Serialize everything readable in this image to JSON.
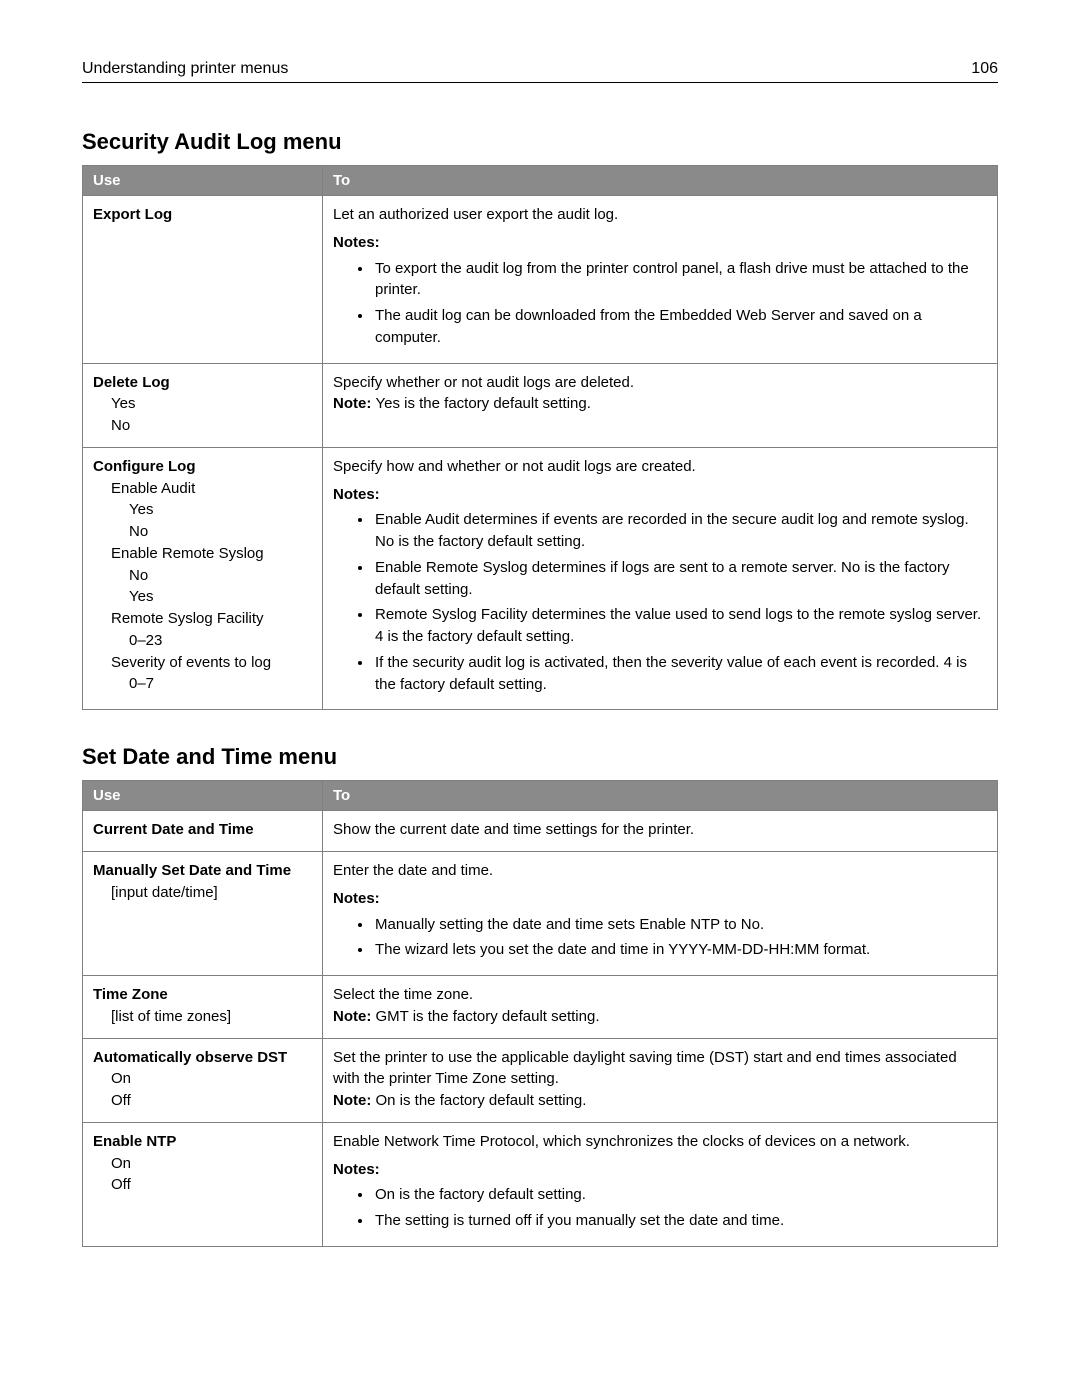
{
  "header": {
    "left": "Understanding printer menus",
    "page_number": "106"
  },
  "section1_title": "Security Audit Log menu",
  "section2_title": "Set Date and Time menu",
  "columns": {
    "use": "Use",
    "to": "To"
  },
  "t1r1_title": "Export Log",
  "t1r1_line1": "Let an authorized user export the audit log.",
  "t1r1_notes": "Notes:",
  "t1r1_b1": "To export the audit log from the printer control panel, a flash drive must be attached to the printer.",
  "t1r1_b2": "The audit log can be downloaded from the Embedded Web Server and saved on a computer.",
  "t1r2_title": "Delete Log",
  "t1r2_opt1": "Yes",
  "t1r2_opt2": "No",
  "t1r2_line1": "Specify whether or not audit logs are deleted.",
  "t1r2_note_label": "Note: ",
  "t1r2_note_text": "Yes is the factory default setting.",
  "t1r3_title": "Configure Log",
  "t1r3_g1": "Enable Audit",
  "t1r3_g1a": "Yes",
  "t1r3_g1b": "No",
  "t1r3_g2": "Enable Remote Syslog",
  "t1r3_g2a": "No",
  "t1r3_g2b": "Yes",
  "t1r3_g3": "Remote Syslog Facility",
  "t1r3_g3a": "0–23",
  "t1r3_g4": "Severity of events to log",
  "t1r3_g4a": "0–7",
  "t1r3_line1": "Specify how and whether or not audit logs are created.",
  "t1r3_notes": "Notes:",
  "t1r3_b1": "Enable Audit determines if events are recorded in the secure audit log and remote syslog. No is the factory default setting.",
  "t1r3_b2": "Enable Remote Syslog determines if logs are sent to a remote server. No is the factory default setting.",
  "t1r3_b3": "Remote Syslog Facility determines the value used to send logs to the remote syslog server. 4 is the factory default setting.",
  "t1r3_b4": "If the security audit log is activated, then the severity value of each event is recorded. 4 is the factory default setting.",
  "t2r1_title": "Current Date and Time",
  "t2r1_line1": "Show the current date and time settings for the printer.",
  "t2r2_title": "Manually Set Date and Time",
  "t2r2_opt1": "[input date/time]",
  "t2r2_line1": "Enter the date and time.",
  "t2r2_notes": "Notes:",
  "t2r2_b1": "Manually setting the date and time sets Enable NTP to No.",
  "t2r2_b2": "The wizard lets you set the date and time in YYYY-MM-DD-HH:MM format.",
  "t2r3_title": "Time Zone",
  "t2r3_opt1": "[list of time zones]",
  "t2r3_line1": "Select the time zone.",
  "t2r3_note_label": "Note: ",
  "t2r3_note_text": "GMT is the factory default setting.",
  "t2r4_title": "Automatically observe DST",
  "t2r4_opt1": "On",
  "t2r4_opt2": "Off",
  "t2r4_line1": "Set the printer to use the applicable daylight saving time (DST) start and end times associated with the printer Time Zone setting.",
  "t2r4_note_label": "Note: ",
  "t2r4_note_text": "On is the factory default setting.",
  "t2r5_title": "Enable NTP",
  "t2r5_opt1": "On",
  "t2r5_opt2": "Off",
  "t2r5_line1": "Enable Network Time Protocol, which synchronizes the clocks of devices on a network.",
  "t2r5_notes": "Notes:",
  "t2r5_b1": "On is the factory default setting.",
  "t2r5_b2": "The setting is turned off if you manually set the date and time."
}
